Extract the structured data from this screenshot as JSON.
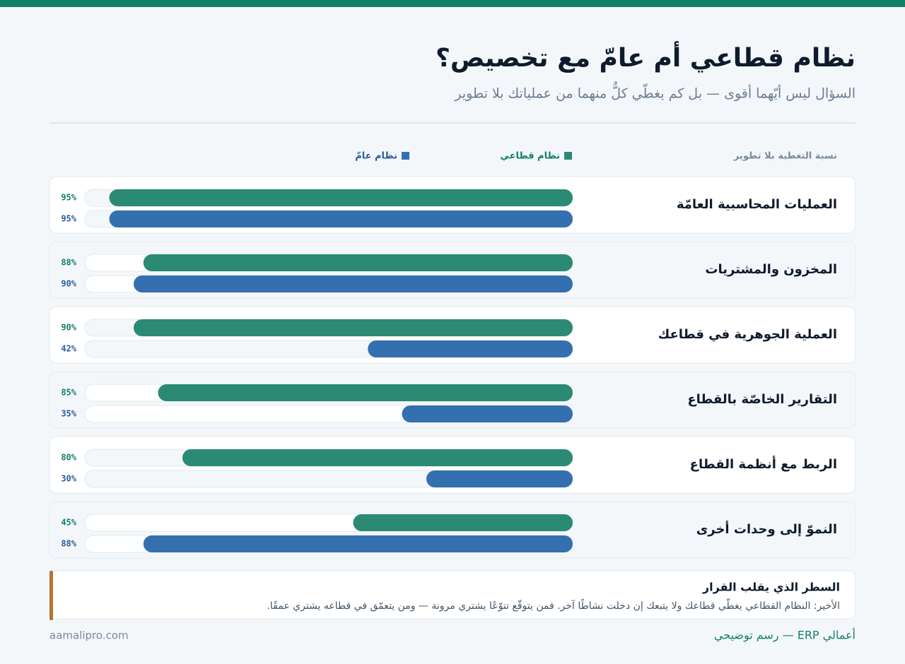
{
  "chart_data": {
    "type": "bar",
    "orientation": "horizontal",
    "title": "نظام قطاعي أم عامّ مع تخصيص؟",
    "subtitle": "السؤال ليس أيّهما أقوى — بل كم يغطّي كلٌّ منهما من عملياتك بلا تطوير",
    "column_label": "نسبة التغطية بلا تطوير",
    "categories": [
      "العمليات المحاسبية العامّة",
      "المخزون والمشتريات",
      "العملية الجوهرية في قطاعك",
      "التقارير الخاصّة بالقطاع",
      "الربط مع أنظمة القطاع",
      "النموّ إلى وحدات أخرى"
    ],
    "xlim": [
      0,
      100
    ],
    "series": [
      {
        "name": "نظام قطاعي",
        "color": "#2a8a74",
        "label_color": "#127f68",
        "values": [
          95,
          88,
          90,
          85,
          80,
          45
        ],
        "value_labels": [
          "95%",
          "88%",
          "90%",
          "85%",
          "80%",
          "45%"
        ]
      },
      {
        "name": "نظام عامّ",
        "color": "#3470b0",
        "label_color": "#2a5d9a",
        "values": [
          95,
          90,
          42,
          35,
          30,
          88
        ],
        "value_labels": [
          "95%",
          "90%",
          "42%",
          "35%",
          "30%",
          "88%"
        ]
      }
    ]
  },
  "note": {
    "title": "السطر الذي يقلب القرار",
    "text": "الأخير: النظام القطاعي يغطّي قطاعك ولا يتبعك إن دخلت نشاطًا آخر. فمن يتوقّع تنوّعًا يشتري مرونة — ومن يتعمّق في قطاعه يشتري عمقًا."
  },
  "footer": {
    "brand": "أعمالي ERP — رسم توضيحي",
    "site": "aamalipro.com"
  }
}
